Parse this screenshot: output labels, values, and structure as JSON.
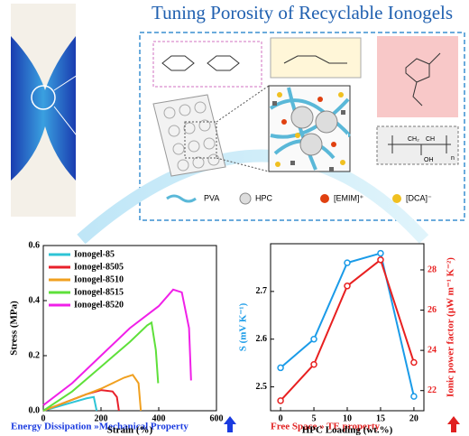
{
  "header": {
    "title": "Tuning Porosity of Recyclable Ionogels"
  },
  "diagram": {
    "legend": [
      "PVA",
      "HPC",
      "[EMIM]⁺",
      "[DCA]⁻"
    ],
    "structure_labels": [
      "CH₂",
      "CH",
      "OH",
      "n"
    ]
  },
  "captions": [
    "Energy Dissipation »Mechanical Property",
    "Free Space » TE property"
  ],
  "chart_data": [
    {
      "type": "line",
      "xlabel": "Strain (%)",
      "ylabel": "Stress (MPa)",
      "xlim": [
        0,
        600
      ],
      "xticks": [
        0,
        200,
        400,
        600
      ],
      "ylim": [
        0,
        0.6
      ],
      "yticks": [
        {
          "value": 0,
          "label": "0.0"
        },
        0.2,
        0.4,
        0.6
      ],
      "legend": "upper left",
      "markers": false,
      "series": [
        {
          "name": "Ionogel-85",
          "color": "#2ec4d6",
          "x": [
            0,
            50,
            100,
            150,
            175,
            185
          ],
          "values": [
            0,
            0.015,
            0.03,
            0.045,
            0.05,
            0
          ]
        },
        {
          "name": "Ionogel-8505",
          "color": "#e8202a",
          "x": [
            0,
            50,
            100,
            150,
            200,
            240,
            255,
            262
          ],
          "values": [
            0,
            0.02,
            0.04,
            0.06,
            0.075,
            0.07,
            0.05,
            0
          ]
        },
        {
          "name": "Ionogel-8510",
          "color": "#f0a020",
          "x": [
            0,
            100,
            200,
            280,
            310,
            330,
            338
          ],
          "values": [
            0,
            0.04,
            0.08,
            0.12,
            0.13,
            0.1,
            0
          ]
        },
        {
          "name": "Ionogel-8515",
          "color": "#5ee03a",
          "x": [
            0,
            100,
            200,
            300,
            360,
            375,
            390,
            398
          ],
          "values": [
            0,
            0.07,
            0.16,
            0.25,
            0.31,
            0.32,
            0.22,
            0.1
          ]
        },
        {
          "name": "Ionogel-8520",
          "color": "#f020e8",
          "x": [
            0,
            100,
            200,
            300,
            400,
            450,
            480,
            505,
            512
          ],
          "values": [
            0.02,
            0.1,
            0.2,
            0.3,
            0.38,
            0.44,
            0.43,
            0.3,
            0.11
          ]
        }
      ]
    },
    {
      "type": "line",
      "xlabel": "HPC Loading (wt.%)",
      "ylabel": "S (mV K⁻¹)",
      "y2label": "Ionic power factor (μW m⁻¹ K⁻²)",
      "x": [
        0,
        5,
        10,
        15,
        20
      ],
      "xlim": [
        -1.5,
        21.5
      ],
      "xticks": [
        0,
        5,
        10,
        15,
        20
      ],
      "ylim": [
        2.45,
        2.8
      ],
      "yticks": [
        2.5,
        2.6,
        2.7
      ],
      "y2lim": [
        21,
        29.3
      ],
      "y2ticks": [
        22,
        24,
        26,
        28
      ],
      "markers": true,
      "series": [
        {
          "name": "S",
          "color": "#1a9be8",
          "values": [
            2.54,
            2.6,
            2.76,
            2.78,
            2.48
          ]
        },
        {
          "name": "Ionic power factor",
          "color": "#e82020",
          "axis": "y2",
          "values": [
            21.5,
            23.3,
            27.2,
            28.5,
            23.4
          ]
        }
      ]
    }
  ]
}
